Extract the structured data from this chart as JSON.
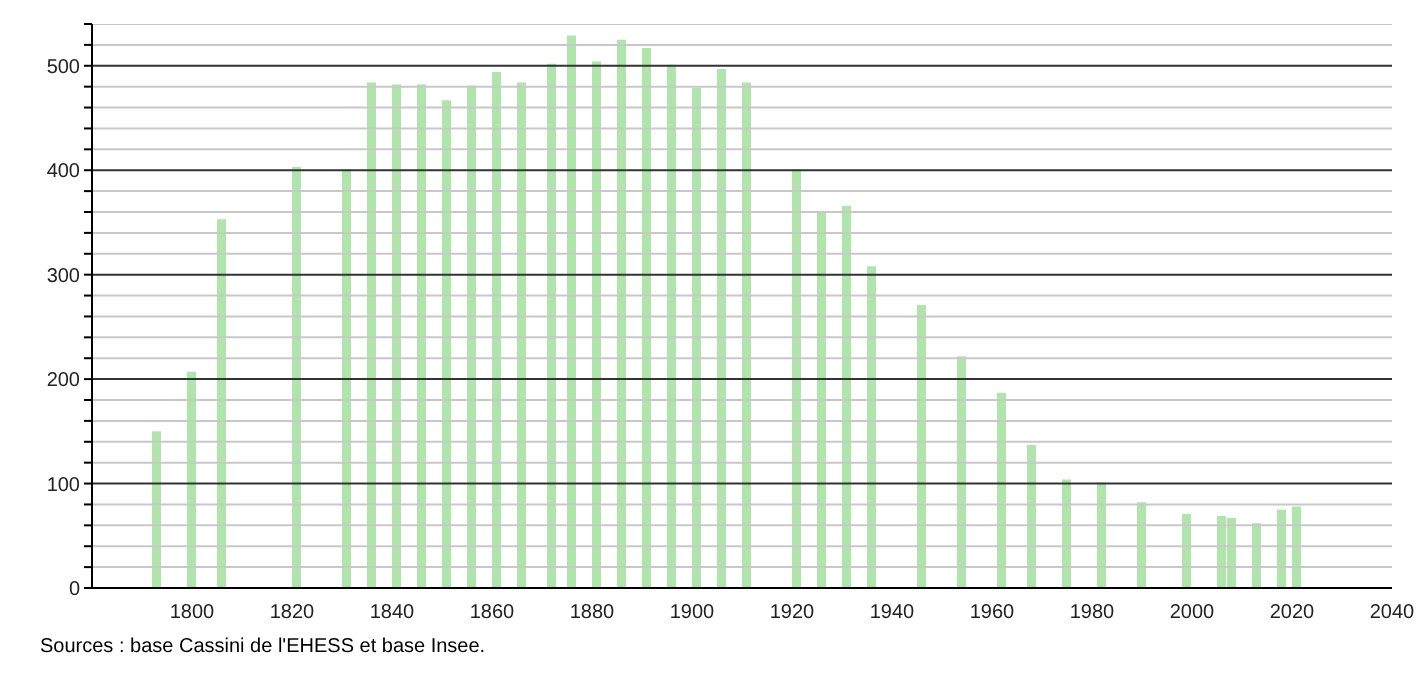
{
  "chart_data": {
    "type": "bar",
    "x": [
      1793,
      1800,
      1806,
      1821,
      1831,
      1836,
      1841,
      1846,
      1851,
      1856,
      1861,
      1866,
      1872,
      1876,
      1881,
      1886,
      1891,
      1896,
      1901,
      1906,
      1911,
      1921,
      1926,
      1931,
      1936,
      1946,
      1954,
      1962,
      1968,
      1975,
      1982,
      1990,
      1999,
      2006,
      2008,
      2013,
      2018,
      2021
    ],
    "values": [
      150,
      207,
      353,
      403,
      401,
      484,
      482,
      482,
      467,
      481,
      494,
      484,
      502,
      529,
      504,
      525,
      517,
      501,
      479,
      497,
      484,
      401,
      360,
      366,
      308,
      271,
      222,
      187,
      137,
      104,
      101,
      82,
      71,
      69,
      67,
      62,
      75,
      78
    ],
    "color": "#b0e4ac",
    "xlim": [
      1780,
      2040
    ],
    "xticks": [
      1800,
      1820,
      1840,
      1860,
      1880,
      1900,
      1920,
      1940,
      1960,
      1980,
      2000,
      2020,
      2040
    ],
    "ylim": [
      0,
      540
    ],
    "yticks": [
      0,
      {
        "value": 20,
        "label": null
      },
      {
        "value": 40,
        "label": null
      },
      {
        "value": 60,
        "label": null
      },
      {
        "value": 80,
        "label": null
      },
      100,
      {
        "value": 120,
        "label": null
      },
      {
        "value": 140,
        "label": null
      },
      {
        "value": 160,
        "label": null
      },
      {
        "value": 180,
        "label": null
      },
      200,
      {
        "value": 220,
        "label": null
      },
      {
        "value": 240,
        "label": null
      },
      {
        "value": 260,
        "label": null
      },
      {
        "value": 280,
        "label": null
      },
      300,
      {
        "value": 320,
        "label": null
      },
      {
        "value": 340,
        "label": null
      },
      {
        "value": 360,
        "label": null
      },
      {
        "value": 380,
        "label": null
      },
      400,
      {
        "value": 420,
        "label": null
      },
      {
        "value": 440,
        "label": null
      },
      {
        "value": 460,
        "label": null
      },
      {
        "value": 480,
        "label": null
      },
      500,
      {
        "value": 520,
        "label": null
      },
      {
        "value": 540,
        "label": null
      }
    ],
    "grid": "y",
    "annotations": [
      "Sources : base Cassini de l'EHESS et base Insee."
    ]
  }
}
